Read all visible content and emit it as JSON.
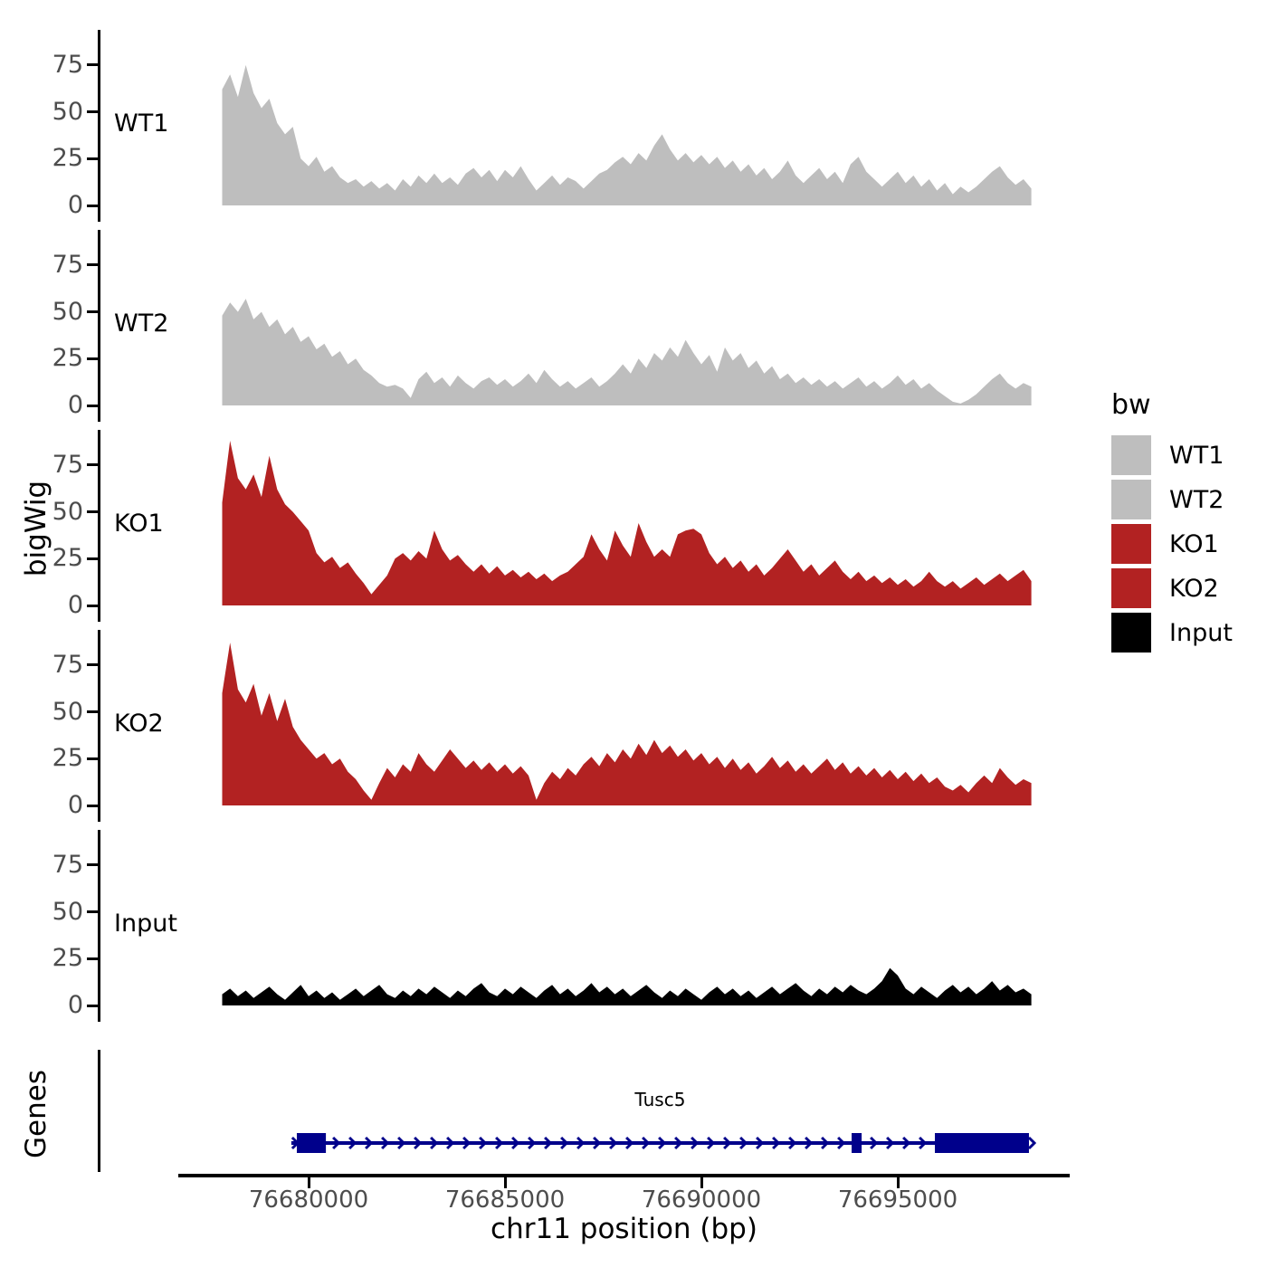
{
  "legend": {
    "title": "bw",
    "entries": [
      {
        "label": "WT1",
        "color": "#BEBEBE"
      },
      {
        "label": "WT2",
        "color": "#BEBEBE"
      },
      {
        "label": "KO1",
        "color": "#B22222"
      },
      {
        "label": "KO2",
        "color": "#B22222"
      },
      {
        "label": "Input",
        "color": "#000000"
      }
    ]
  },
  "chart_data": {
    "type": "area",
    "title": "",
    "xlabel": "chr11 position (bp)",
    "ylabel": "bigWig",
    "facets": [
      "WT1",
      "WT2",
      "KO1",
      "KO2",
      "Input"
    ],
    "x_ticks": [
      76680000,
      76685000,
      76690000,
      76695000
    ],
    "y_ticks": [
      0,
      25,
      50,
      75
    ],
    "ylim": [
      0,
      92
    ],
    "xlim": [
      76676700,
      76699400
    ],
    "grid": false,
    "legend_position": "right",
    "x_start": 76677800,
    "x_step": 200,
    "series": [
      {
        "name": "WT1",
        "color": "#BEBEBE",
        "values": [
          62,
          70,
          58,
          75,
          60,
          52,
          57,
          44,
          38,
          42,
          25,
          21,
          26,
          18,
          21,
          15,
          12,
          14,
          10,
          13,
          9,
          12,
          8,
          14,
          10,
          16,
          12,
          17,
          12,
          15,
          11,
          17,
          20,
          15,
          19,
          13,
          19,
          15,
          21,
          14,
          8,
          12,
          16,
          11,
          15,
          13,
          9,
          13,
          17,
          19,
          23,
          26,
          22,
          28,
          24,
          32,
          38,
          30,
          24,
          28,
          23,
          27,
          22,
          26,
          20,
          24,
          18,
          22,
          16,
          20,
          14,
          18,
          24,
          16,
          12,
          16,
          20,
          14,
          18,
          12,
          22,
          26,
          18,
          14,
          10,
          14,
          18,
          12,
          16,
          10,
          14,
          8,
          12,
          6,
          10,
          7,
          10,
          14,
          18,
          21,
          15,
          11,
          14,
          9
        ]
      },
      {
        "name": "WT2",
        "color": "#BEBEBE",
        "values": [
          48,
          55,
          50,
          57,
          46,
          50,
          42,
          46,
          38,
          42,
          34,
          37,
          30,
          33,
          26,
          29,
          22,
          25,
          19,
          16,
          12,
          10,
          11,
          9,
          4,
          14,
          18,
          12,
          15,
          10,
          16,
          12,
          9,
          13,
          15,
          11,
          14,
          10,
          13,
          17,
          12,
          19,
          14,
          10,
          13,
          9,
          12,
          15,
          10,
          13,
          17,
          22,
          17,
          25,
          20,
          28,
          24,
          31,
          26,
          35,
          28,
          22,
          27,
          18,
          31,
          24,
          28,
          20,
          24,
          17,
          21,
          14,
          17,
          12,
          15,
          11,
          14,
          10,
          13,
          9,
          12,
          15,
          10,
          13,
          9,
          12,
          16,
          11,
          14,
          9,
          12,
          8,
          5,
          2,
          1,
          3,
          6,
          10,
          14,
          17,
          12,
          9,
          12,
          10
        ]
      },
      {
        "name": "KO1",
        "color": "#B22222",
        "values": [
          55,
          88,
          68,
          62,
          70,
          58,
          80,
          62,
          54,
          50,
          45,
          40,
          28,
          23,
          26,
          20,
          23,
          17,
          12,
          6,
          11,
          16,
          25,
          28,
          24,
          29,
          25,
          40,
          30,
          24,
          27,
          22,
          18,
          22,
          17,
          21,
          16,
          19,
          15,
          18,
          14,
          17,
          13,
          16,
          18,
          22,
          26,
          38,
          30,
          24,
          40,
          32,
          26,
          44,
          34,
          26,
          30,
          26,
          38,
          40,
          41,
          38,
          28,
          22,
          26,
          20,
          24,
          18,
          22,
          16,
          20,
          25,
          30,
          24,
          18,
          22,
          16,
          20,
          24,
          18,
          14,
          18,
          13,
          16,
          12,
          15,
          11,
          14,
          10,
          13,
          18,
          13,
          10,
          13,
          9,
          12,
          15,
          11,
          14,
          17,
          13,
          16,
          19,
          13
        ]
      },
      {
        "name": "KO2",
        "color": "#B22222",
        "values": [
          60,
          87,
          62,
          55,
          65,
          48,
          60,
          45,
          57,
          42,
          35,
          30,
          25,
          28,
          22,
          25,
          18,
          14,
          8,
          3,
          12,
          20,
          15,
          22,
          18,
          28,
          22,
          18,
          24,
          30,
          25,
          20,
          24,
          19,
          23,
          18,
          22,
          17,
          21,
          16,
          3,
          12,
          18,
          14,
          20,
          16,
          22,
          26,
          21,
          28,
          23,
          30,
          25,
          33,
          27,
          35,
          28,
          32,
          26,
          30,
          24,
          28,
          22,
          26,
          20,
          25,
          19,
          23,
          17,
          21,
          26,
          20,
          24,
          18,
          22,
          17,
          21,
          25,
          19,
          23,
          17,
          21,
          16,
          20,
          15,
          19,
          14,
          18,
          13,
          17,
          12,
          15,
          10,
          8,
          11,
          7,
          12,
          16,
          12,
          20,
          15,
          11,
          14,
          12
        ]
      },
      {
        "name": "Input",
        "color": "#000000",
        "values": [
          6,
          9,
          5,
          8,
          4,
          7,
          10,
          6,
          3,
          7,
          11,
          5,
          8,
          4,
          7,
          3,
          6,
          9,
          5,
          8,
          11,
          6,
          4,
          8,
          5,
          9,
          6,
          10,
          7,
          4,
          8,
          5,
          9,
          12,
          7,
          5,
          9,
          6,
          10,
          7,
          4,
          8,
          11,
          6,
          9,
          5,
          8,
          12,
          7,
          10,
          6,
          9,
          5,
          8,
          11,
          7,
          4,
          8,
          5,
          9,
          6,
          3,
          7,
          10,
          6,
          9,
          5,
          8,
          4,
          7,
          10,
          6,
          9,
          12,
          8,
          5,
          9,
          6,
          10,
          7,
          11,
          8,
          6,
          9,
          13,
          20,
          16,
          9,
          6,
          10,
          7,
          4,
          8,
          11,
          7,
          10,
          6,
          9,
          13,
          8,
          11,
          7,
          9,
          6
        ]
      }
    ],
    "gene_track": {
      "label": "Genes",
      "gene": {
        "name": "Tusc5",
        "chromosome": "chr11",
        "strand": "+",
        "start": 76679560,
        "end": 76698340,
        "color": "#00008B",
        "exons": [
          [
            76679700,
            76680440
          ],
          [
            76693825,
            76694080
          ],
          [
            76695945,
            76698340
          ]
        ]
      }
    }
  }
}
